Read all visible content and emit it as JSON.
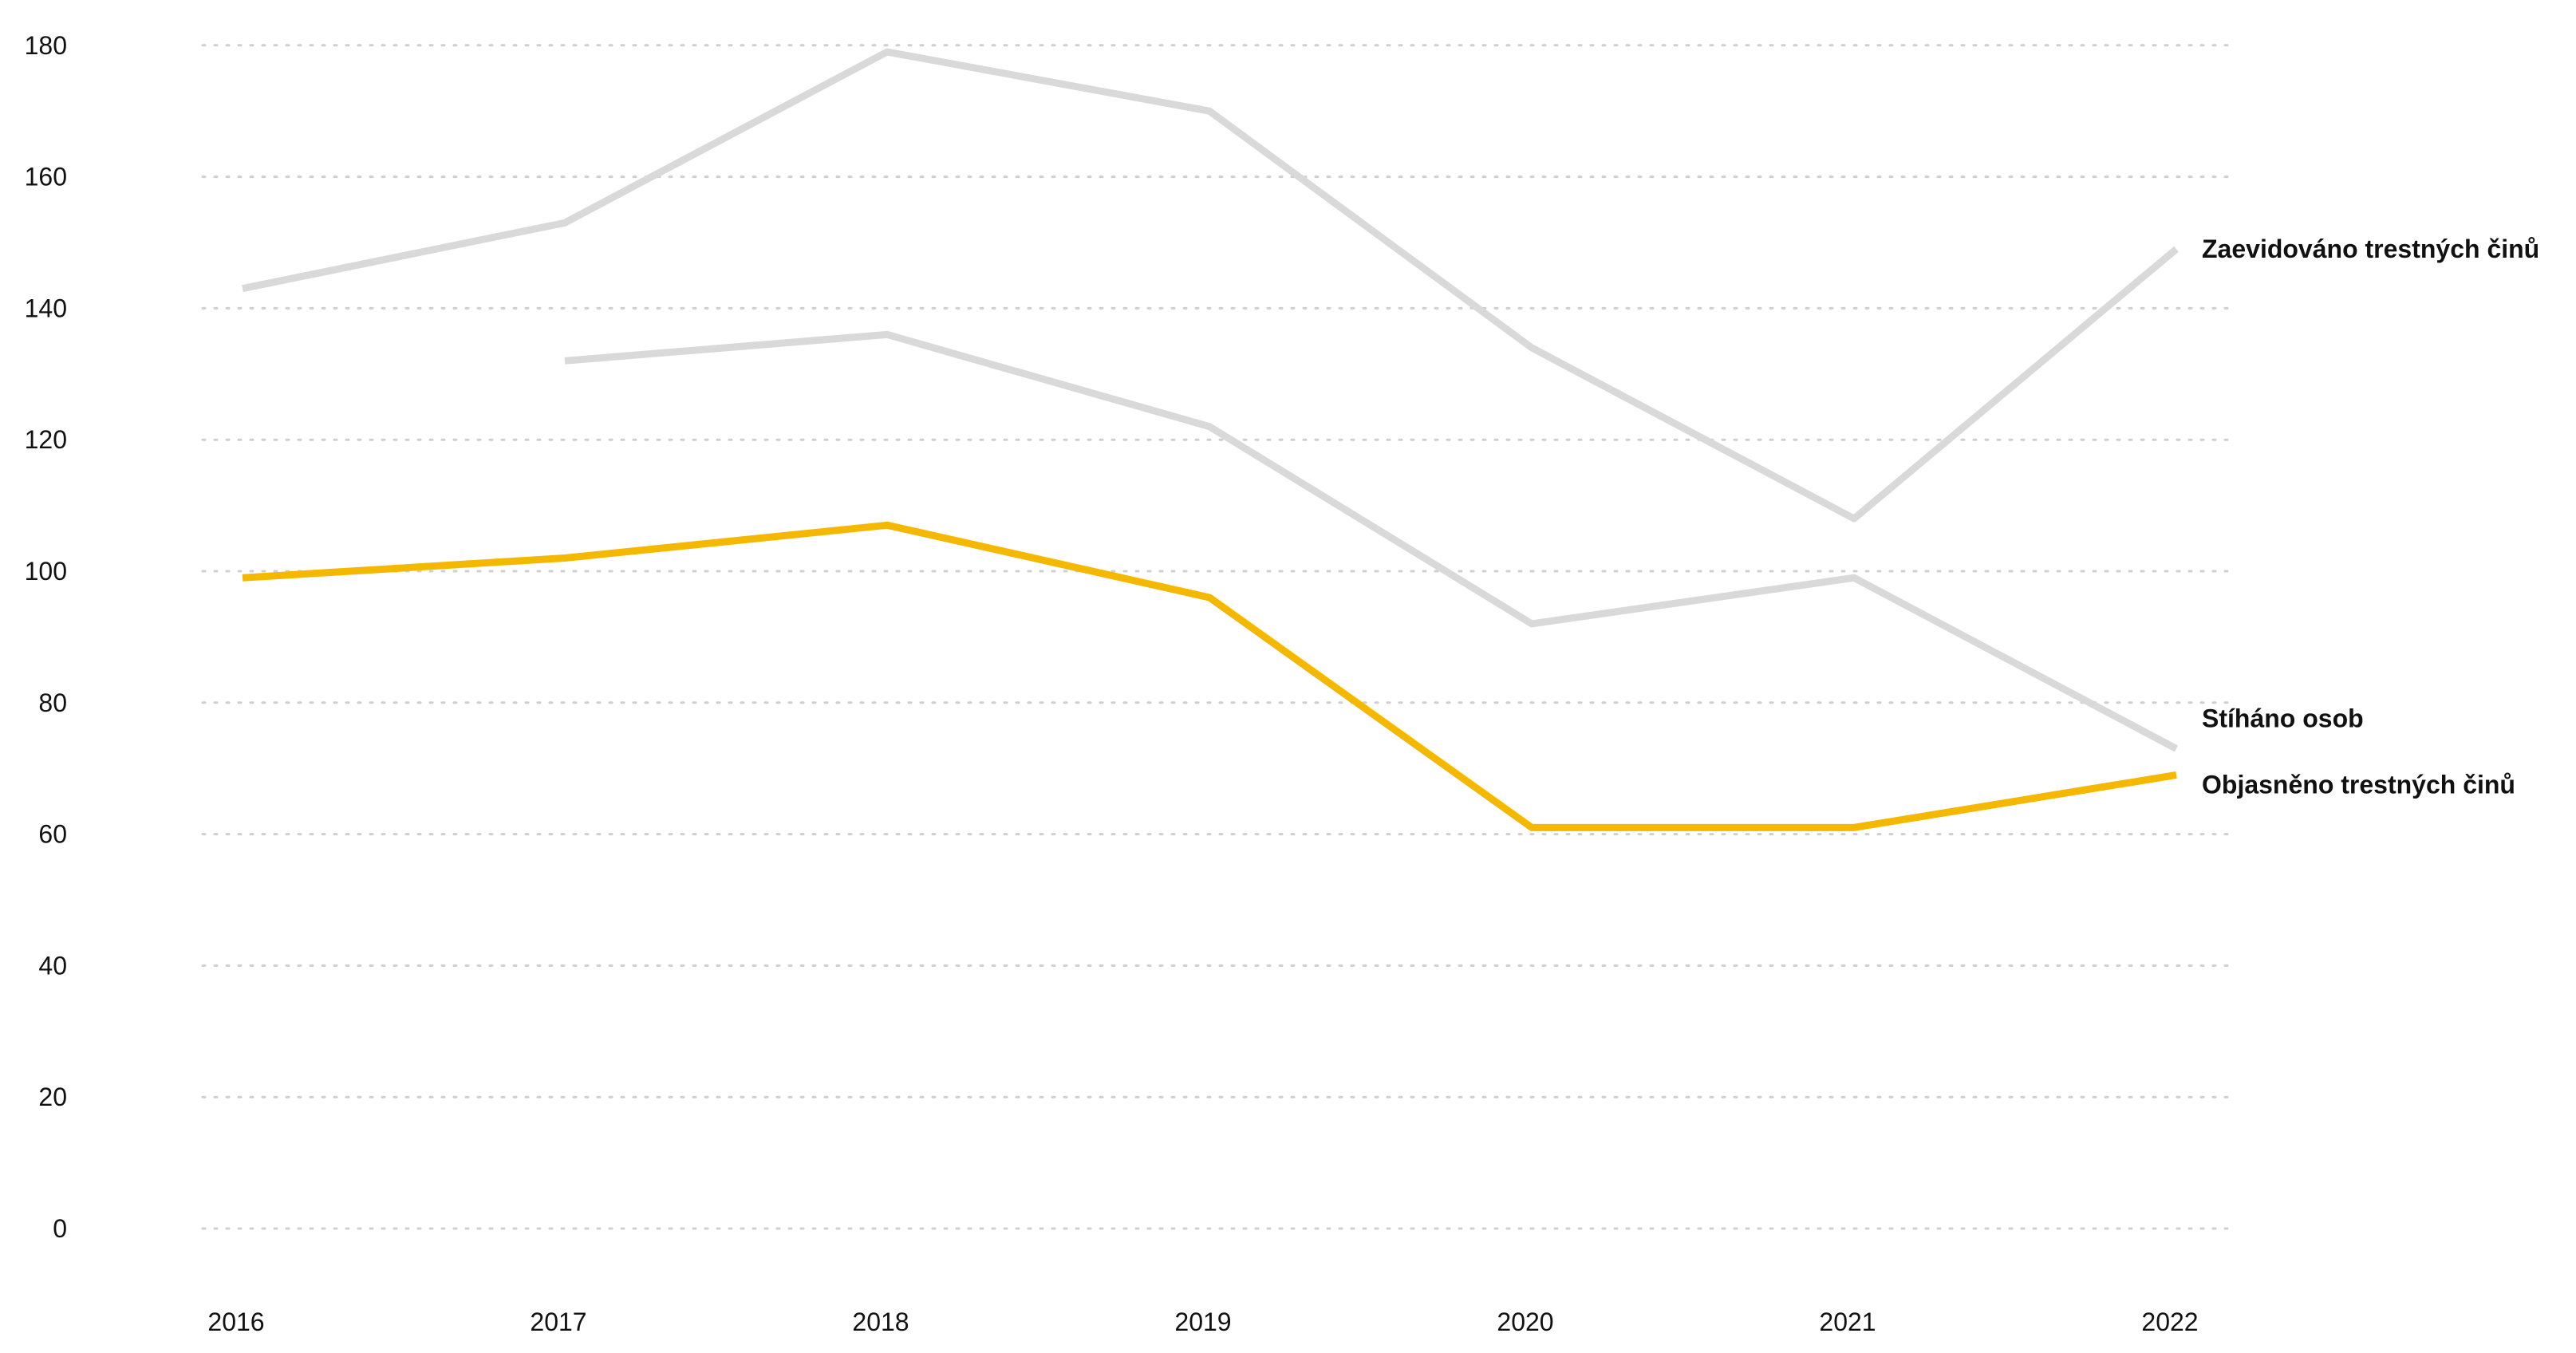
{
  "chart_data": {
    "type": "line",
    "title": "",
    "xlabel": "",
    "ylabel": "",
    "x": [
      "2016",
      "2017",
      "2018",
      "2019",
      "2020",
      "2021",
      "2022"
    ],
    "ylim": [
      0,
      180
    ],
    "yticks": [
      "0",
      "20",
      "40",
      "60",
      "80",
      "100",
      "120",
      "140",
      "160",
      "180"
    ],
    "grid": true,
    "legend": "labels at line ends (right)",
    "series": [
      {
        "name": "Zaevidováno trestných činů",
        "color": "#d9d9d9",
        "values": [
          143,
          153,
          179,
          170,
          134,
          108,
          149
        ]
      },
      {
        "name": "Stíháno osob",
        "color": "#d9d9d9",
        "values": [
          null,
          132,
          136,
          122,
          92,
          99,
          73
        ]
      },
      {
        "name": "Objasněno trestných činů",
        "color": "#f5b800",
        "values": [
          99,
          102,
          107,
          96,
          61,
          61,
          69
        ]
      }
    ]
  }
}
